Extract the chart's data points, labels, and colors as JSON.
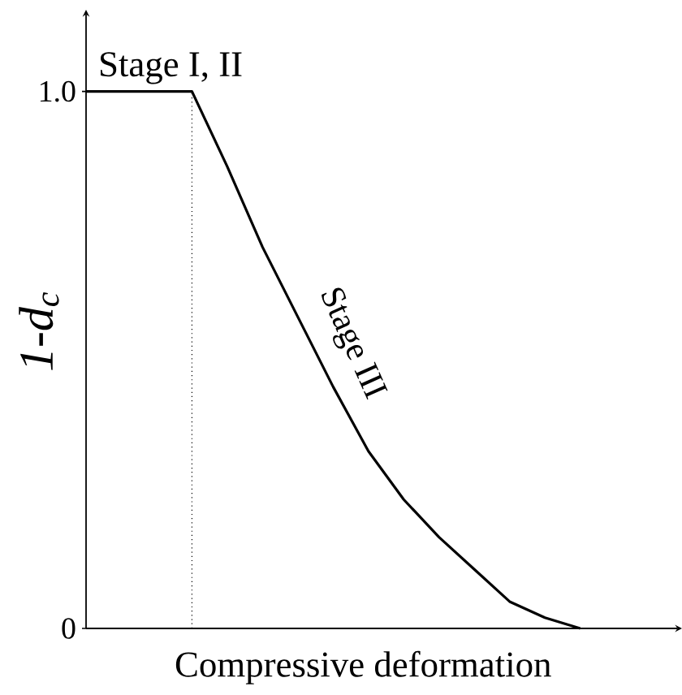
{
  "chart_data": {
    "type": "line",
    "xlabel": "Compressive deformation",
    "ylabel": "1-d$_{c}$",
    "categories": [
      null,
      null,
      null,
      null,
      null,
      null,
      null,
      null,
      null,
      null,
      null,
      null,
      null,
      null,
      null
    ],
    "series": [
      {
        "color": "#000000",
        "values": [
          1,
          1,
          1,
          1,
          0.86,
          0.71,
          0.58,
          0.45,
          0.33,
          0.24,
          0.17,
          0.11,
          0.05,
          0.02,
          0
        ]
      }
    ],
    "ylim": [
      0,
      1.14
    ],
    "yticks": [
      0,
      {
        "value": 1,
        "label": "1.0"
      }
    ],
    "tick_labels": "y",
    "annotations": [
      "Stage I, II",
      "Stage III"
    ]
  }
}
